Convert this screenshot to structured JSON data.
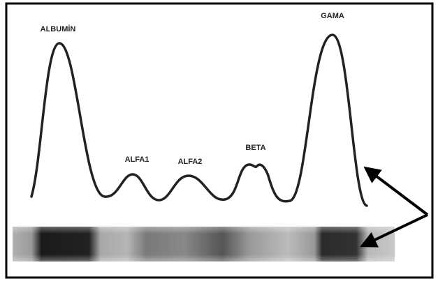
{
  "peaks": [
    "ALBUMİN",
    "ALFA1",
    "ALFA2",
    "BETA",
    "GAMA"
  ]
}
